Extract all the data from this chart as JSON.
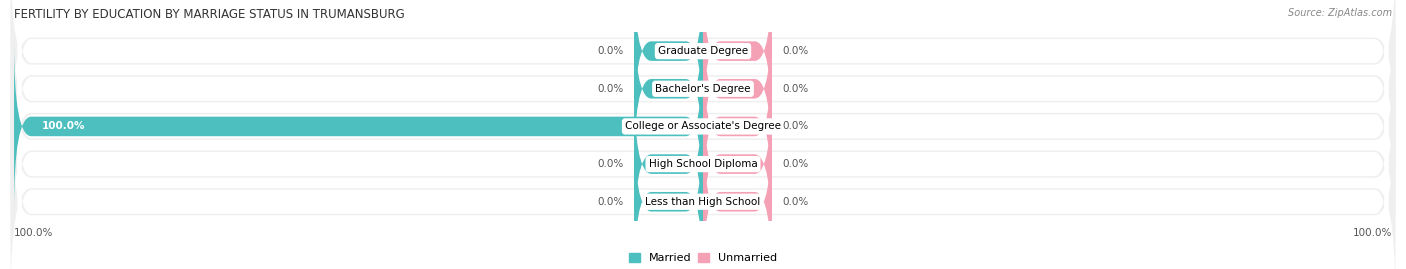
{
  "title": "FERTILITY BY EDUCATION BY MARRIAGE STATUS IN TRUMANSBURG",
  "source": "Source: ZipAtlas.com",
  "categories": [
    "Less than High School",
    "High School Diploma",
    "College or Associate's Degree",
    "Bachelor's Degree",
    "Graduate Degree"
  ],
  "married_values": [
    0.0,
    0.0,
    100.0,
    0.0,
    0.0
  ],
  "unmarried_values": [
    0.0,
    0.0,
    0.0,
    0.0,
    0.0
  ],
  "married_color": "#4dbfbf",
  "unmarried_color": "#f4a0b5",
  "row_bg_color": "#efefef",
  "axis_limit": 100.0,
  "title_fontsize": 8.5,
  "label_fontsize": 7.5,
  "tick_fontsize": 7.5,
  "legend_fontsize": 8,
  "source_fontsize": 7,
  "stub_size": 10
}
